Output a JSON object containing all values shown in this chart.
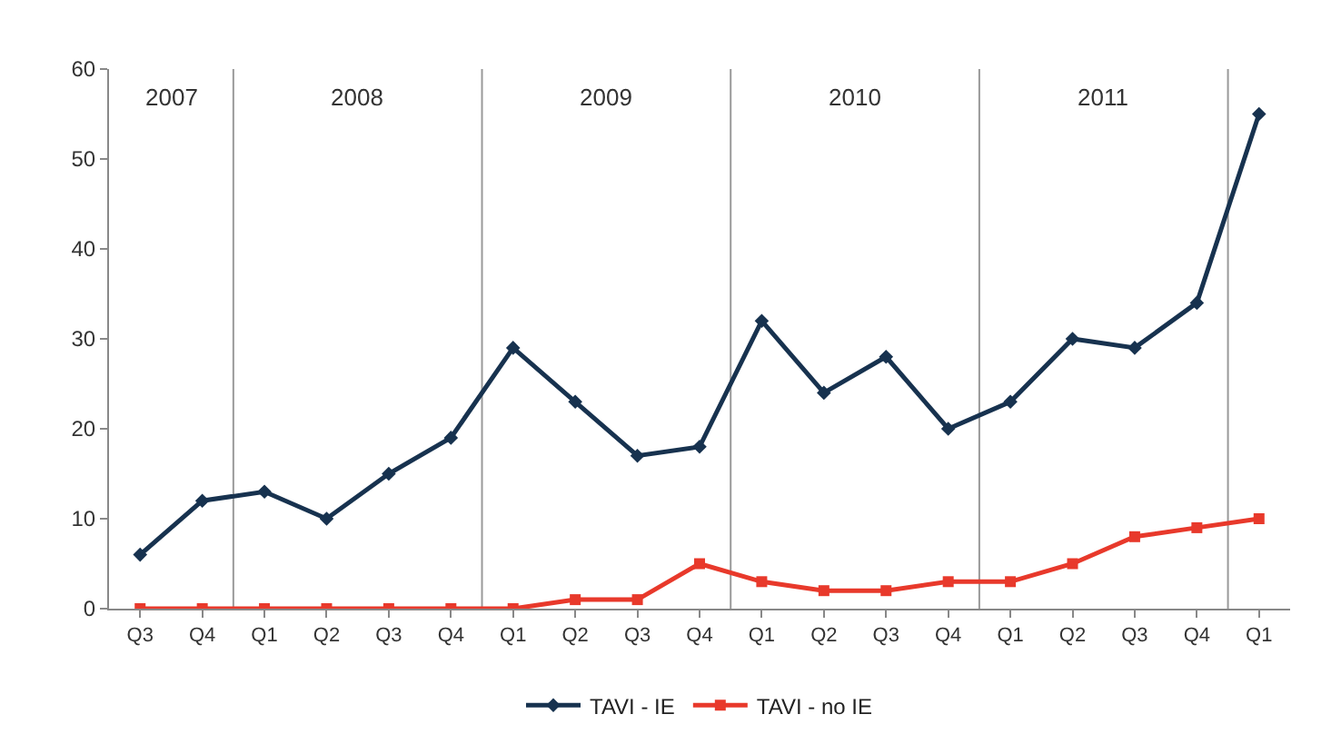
{
  "chart_data": {
    "type": "line",
    "categories": [
      "Q3",
      "Q4",
      "Q1",
      "Q2",
      "Q3",
      "Q4",
      "Q1",
      "Q2",
      "Q3",
      "Q4",
      "Q1",
      "Q2",
      "Q3",
      "Q4",
      "Q1",
      "Q2",
      "Q3",
      "Q4",
      "Q1"
    ],
    "series": [
      {
        "name": "TAVI - IE",
        "color": "#17324f",
        "marker": "diamond",
        "values": [
          6,
          12,
          13,
          10,
          15,
          19,
          29,
          23,
          17,
          18,
          32,
          24,
          28,
          20,
          23,
          30,
          29,
          34,
          55
        ]
      },
      {
        "name": "TAVI - no IE",
        "color": "#e8392b",
        "marker": "square",
        "values": [
          0,
          0,
          0,
          0,
          0,
          0,
          0,
          1,
          1,
          5,
          3,
          2,
          2,
          3,
          3,
          5,
          8,
          9,
          10
        ]
      }
    ],
    "ylim": [
      0,
      60
    ],
    "yticks": [
      0,
      10,
      20,
      30,
      40,
      50,
      60
    ],
    "grid": false,
    "legend": "bottom",
    "annotations": [
      "2007",
      "2008",
      "2009",
      "2010",
      "2011"
    ]
  }
}
